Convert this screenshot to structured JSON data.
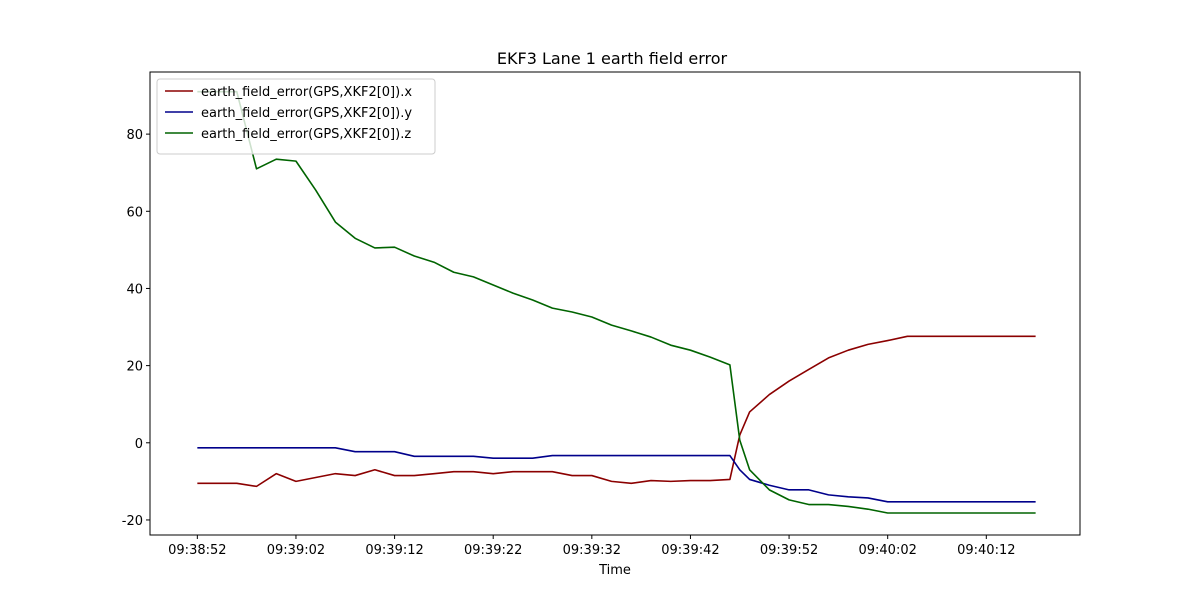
{
  "chart_data": {
    "type": "line",
    "title": "EKF3 Lane 1 earth field error",
    "xlabel": "Time",
    "x": [
      "09:38:52",
      "09:38:54",
      "09:38:56",
      "09:38:58",
      "09:39:00",
      "09:39:02",
      "09:39:04",
      "09:39:06",
      "09:39:08",
      "09:39:10",
      "09:39:12",
      "09:39:14",
      "09:39:16",
      "09:39:18",
      "09:39:20",
      "09:39:22",
      "09:39:24",
      "09:39:26",
      "09:39:28",
      "09:39:30",
      "09:39:32",
      "09:39:34",
      "09:39:36",
      "09:39:38",
      "09:39:40",
      "09:39:42",
      "09:39:44",
      "09:39:46",
      "09:39:47",
      "09:39:48",
      "09:39:50",
      "09:39:52",
      "09:39:54",
      "09:39:56",
      "09:39:58",
      "09:40:00",
      "09:40:02",
      "09:40:04",
      "09:40:06",
      "09:40:08",
      "09:40:10",
      "09:40:12",
      "09:40:14",
      "09:40:16",
      "09:40:17"
    ],
    "series": [
      {
        "name": "earth_field_error(GPS,XKF2[0]).x",
        "color": "#8b0000",
        "values": [
          -10.5,
          -10.5,
          -10.5,
          -11.3,
          -8,
          -10,
          -9,
          -8,
          -8.5,
          -7,
          -8.5,
          -8.5,
          -8,
          -7.5,
          -7.5,
          -8,
          -7.5,
          -7.5,
          -7.5,
          -8.5,
          -8.5,
          -10,
          -10.5,
          -9.8,
          -10,
          -9.8,
          -9.8,
          -9.5,
          2,
          8,
          12.5,
          16,
          19,
          22,
          24,
          25.5,
          26.5,
          27.6,
          27.6,
          27.6,
          27.6,
          27.6,
          27.6,
          27.6,
          27.6
        ]
      },
      {
        "name": "earth_field_error(GPS,XKF2[0]).y",
        "color": "#00008b",
        "values": [
          -1.3,
          -1.3,
          -1.3,
          -1.3,
          -1.3,
          -1.3,
          -1.3,
          -1.3,
          -2.3,
          -2.3,
          -2.3,
          -3.5,
          -3.5,
          -3.5,
          -3.5,
          -4,
          -4,
          -4,
          -3.3,
          -3.3,
          -3.3,
          -3.3,
          -3.3,
          -3.3,
          -3.3,
          -3.3,
          -3.3,
          -3.3,
          -7,
          -9.5,
          -11,
          -12.2,
          -12.2,
          -13.5,
          -14,
          -14.3,
          -15.3,
          -15.3,
          -15.3,
          -15.3,
          -15.3,
          -15.3,
          -15.3,
          -15.3,
          -15.3
        ]
      },
      {
        "name": "earth_field_error(GPS,XKF2[0]).z",
        "color": "#006400",
        "values": [
          91,
          91,
          91,
          71,
          73.5,
          73,
          65.5,
          57.2,
          53,
          50.5,
          50.7,
          48.4,
          46.8,
          44.2,
          43,
          40.9,
          38.8,
          37,
          34.9,
          33.9,
          32.6,
          30.5,
          29,
          27.4,
          25.3,
          24,
          22.2,
          20.2,
          0.7,
          -7,
          -12.2,
          -14.8,
          -16,
          -16,
          -16.5,
          -17.2,
          -18.2,
          -18.2,
          -18.2,
          -18.2,
          -18.2,
          -18.2,
          -18.2,
          -18.2,
          -18.2
        ]
      }
    ],
    "xlim": [
      "09:38:47.2",
      "09:40:21.5"
    ],
    "xticks": [
      "09:38:52",
      "09:39:02",
      "09:39:12",
      "09:39:22",
      "09:39:32",
      "09:39:42",
      "09:39:52",
      "09:40:02",
      "09:40:12"
    ],
    "ylim": [
      -23.9,
      96.1
    ],
    "yticks": [
      -20,
      0,
      20,
      40,
      60,
      80
    ],
    "legend": "upper left"
  }
}
